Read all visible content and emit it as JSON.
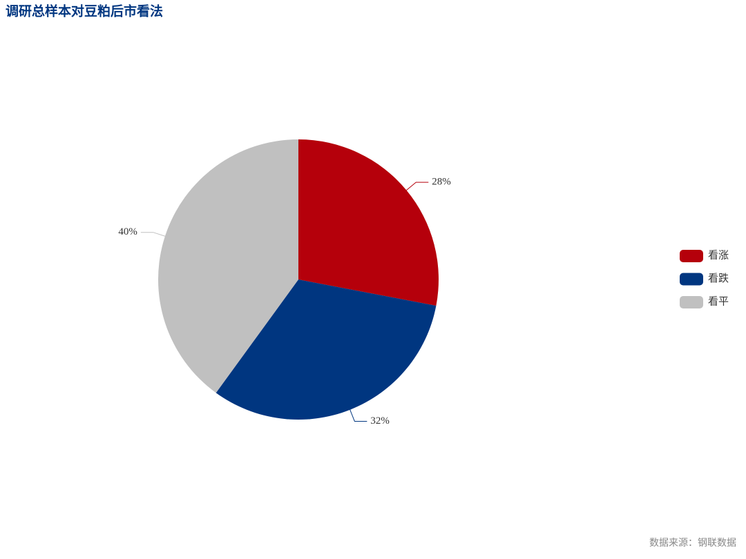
{
  "chart_data": {
    "type": "pie",
    "title": "调研总样本对豆粕后市看法",
    "source": "数据来源：钢联数据",
    "categories": [
      "看涨",
      "看跌",
      "看平"
    ],
    "values": [
      28,
      32,
      40
    ],
    "value_labels": [
      "28%",
      "32%",
      "40%"
    ],
    "colors": [
      "#b5000b",
      "#003680",
      "#c0c0c0"
    ],
    "legend": "right"
  }
}
